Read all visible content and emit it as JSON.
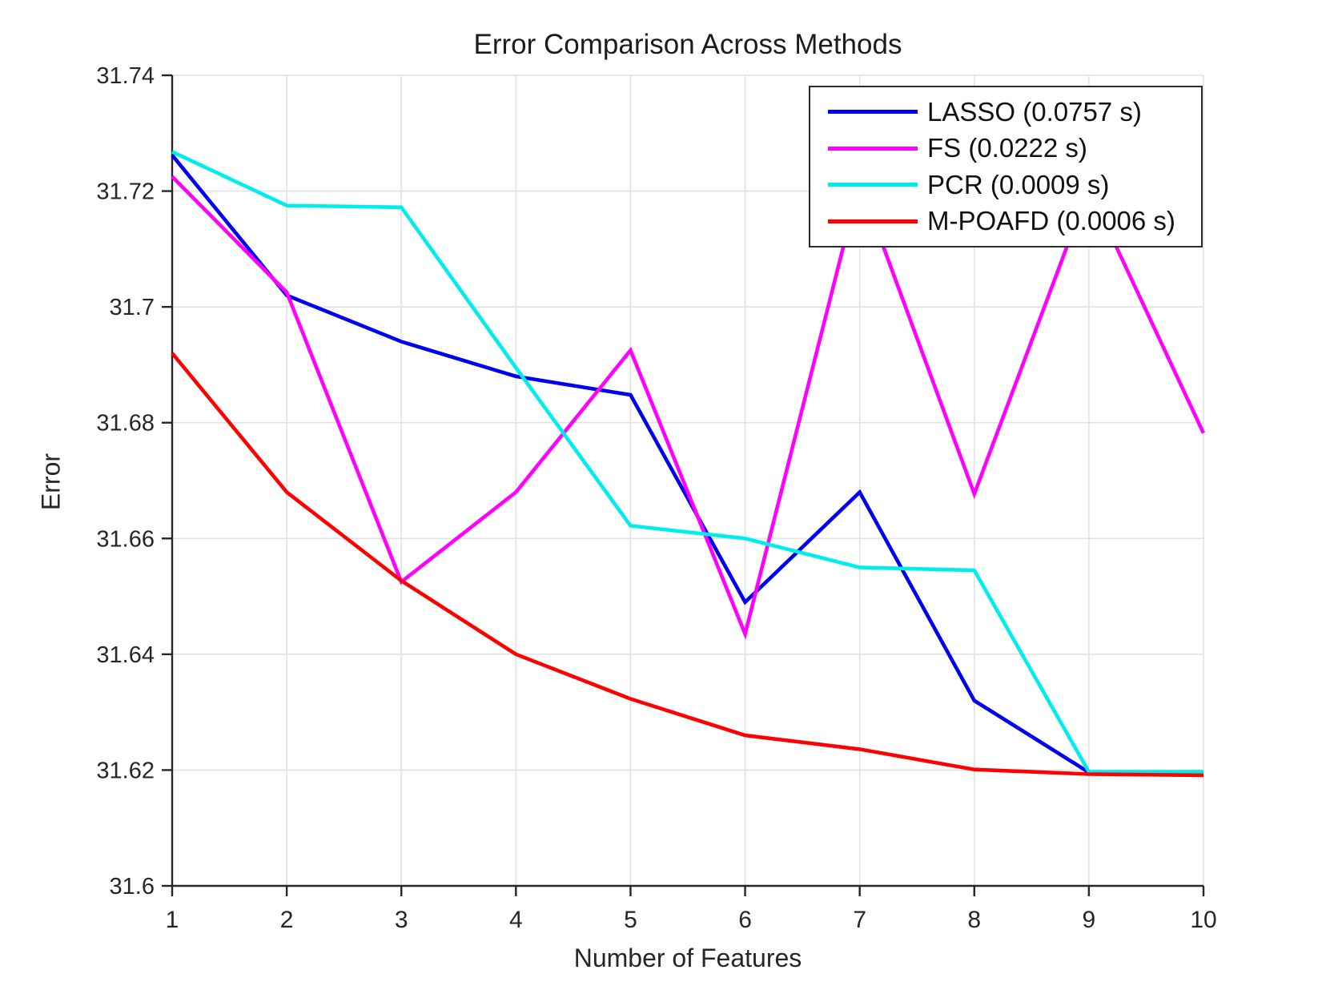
{
  "title": "Error Comparison Across Methods",
  "colors": {
    "background": "#ffffff",
    "axis": "#262626",
    "grid": "#e2e2e2",
    "tick_text": "#262626",
    "legend_border": "#2b2b2b"
  },
  "chart_data": {
    "type": "line",
    "title": "Error Comparison Across Methods",
    "xlabel": "Number of Features",
    "ylabel": "Error",
    "xlim": [
      1,
      10
    ],
    "ylim": [
      31.6,
      31.74
    ],
    "xticks": [
      1,
      2,
      3,
      4,
      5,
      6,
      7,
      8,
      9,
      10
    ],
    "xtick_labels": [
      "1",
      "2",
      "3",
      "4",
      "5",
      "6",
      "7",
      "8",
      "9",
      "10"
    ],
    "yticks": [
      31.6,
      31.62,
      31.64,
      31.66,
      31.68,
      31.7,
      31.72,
      31.74
    ],
    "ytick_labels": [
      "31.6",
      "31.62",
      "31.64",
      "31.66",
      "31.68",
      "31.7",
      "31.72",
      "31.74"
    ],
    "grid": true,
    "legend_position": "top-right",
    "x": [
      1,
      2,
      3,
      4,
      5,
      6,
      7,
      8,
      9,
      10
    ],
    "series": [
      {
        "label": "LASSO (0.0757 s)",
        "color": "#0000f0",
        "values": [
          31.7262,
          31.702,
          31.694,
          31.688,
          31.6848,
          31.649,
          31.668,
          31.632,
          31.6196,
          31.6196
        ]
      },
      {
        "label": "FS (0.0222 s)",
        "color": "#ff00ff",
        "values": [
          31.7225,
          31.7025,
          31.6525,
          31.668,
          31.6925,
          31.6435,
          31.7215,
          31.6677,
          31.7205,
          31.6782
        ]
      },
      {
        "label": "PCR (0.0009 s)",
        "color": "#00eded",
        "values": [
          31.7268,
          31.7175,
          31.7172,
          31.6895,
          31.6622,
          31.66,
          31.655,
          31.6545,
          31.6197,
          31.6197
        ]
      },
      {
        "label": "M-POAFD (0.0006 s)",
        "color": "#ff0000",
        "values": [
          31.692,
          31.668,
          31.6527,
          31.64,
          31.6323,
          31.626,
          31.6236,
          31.6201,
          31.6193,
          31.6191
        ]
      }
    ]
  }
}
